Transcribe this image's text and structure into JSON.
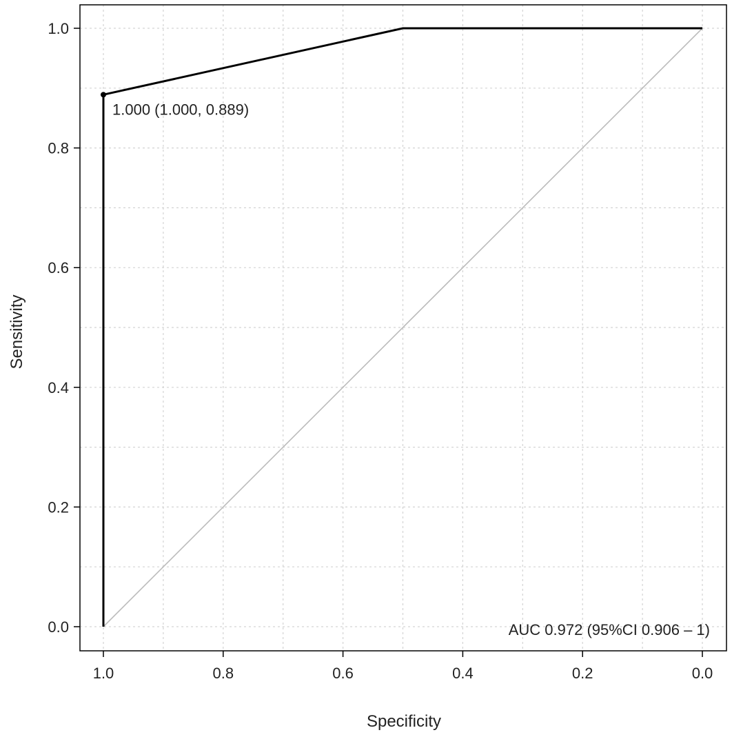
{
  "chart_data": {
    "type": "line",
    "title": "",
    "xlabel": "Specificity",
    "ylabel": "Sensitivity",
    "x_reversed": true,
    "xlim": [
      1.0,
      0.0
    ],
    "ylim": [
      0.0,
      1.0
    ],
    "x_ticks": [
      "1.0",
      "0.8",
      "0.6",
      "0.4",
      "0.2",
      "0.0"
    ],
    "y_ticks": [
      "0.0",
      "0.2",
      "0.4",
      "0.6",
      "0.8",
      "1.0"
    ],
    "grid": true,
    "series": [
      {
        "x": [
          1.0,
          1.0,
          0.5,
          0.0
        ],
        "y": [
          0.0,
          0.889,
          1.0,
          1.0
        ],
        "color": "#000000"
      }
    ],
    "reference_line": {
      "x": [
        1.0,
        0.0
      ],
      "y": [
        0.0,
        1.0
      ],
      "color": "#bbbbbb"
    },
    "threshold_point": {
      "x": 1.0,
      "y": 0.889,
      "label": "1.000 (1.000, 0.889)"
    },
    "auc_text": "AUC 0.972  (95%CI 0.906 – 1)"
  }
}
